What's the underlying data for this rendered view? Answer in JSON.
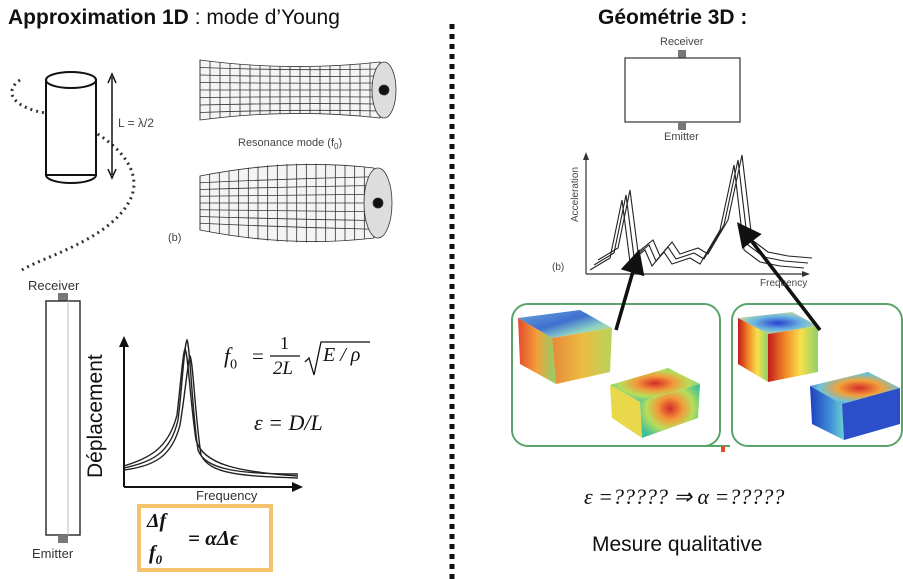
{
  "left": {
    "title_bold": "Approximation 1D",
    "title_rest": " : mode d’Young",
    "length_label": "L = λ/2",
    "resonance_label": "Resonance mode (f",
    "resonance_sub": "0",
    "resonance_end": ")",
    "panel_label": "(b)",
    "receiver": "Receiver",
    "emitter": "Emitter",
    "ylabel": "Déplacement",
    "xlabel": "Frequency",
    "f0_formula_lhs": "f",
    "f0_formula_sub": "0",
    "eq_sign": "=",
    "one": "1",
    "twoL": "2L",
    "sqrt_body": "E / ρ",
    "strain_formula": "ε = D/L",
    "box_num": "Δf",
    "box_den_f": "f",
    "box_den_sub": "0",
    "box_rhs": "= αΔϵ"
  },
  "right": {
    "title": "Géométrie 3D :",
    "receiver": "Receiver",
    "emitter": "Emitter",
    "ylabel": "Acceleration",
    "xlabel": "Frequency",
    "panel_label": "(b)",
    "question_formula": "ε =????? ⇒ α =?????",
    "conclusion": "Mesure qualitative"
  },
  "colors": {
    "divider": "#111111",
    "box_border": "#f4c26a",
    "mode_box_border": "#5aa469",
    "arrow": "#111111"
  }
}
